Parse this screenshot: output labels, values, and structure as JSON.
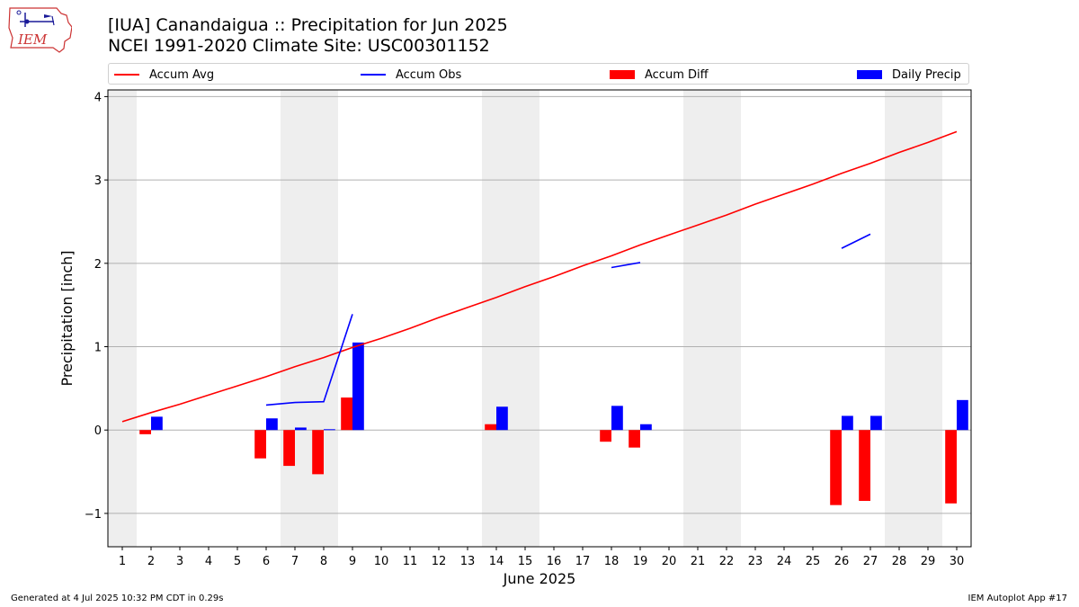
{
  "header": {
    "title_line1": "[IUA] Canandaigua :: Precipitation for Jun 2025",
    "title_line2": "NCEI 1991-2020 Climate Site: USC00301152"
  },
  "logo": {
    "text": "IEM",
    "icon": "iem-iowa-logo-icon"
  },
  "colors": {
    "avg": "#ff0000",
    "obs": "#0000ff",
    "diff": "#ff0000",
    "daily": "#0000ff",
    "weekend_band": "#eeeeee",
    "grid": "#b0b0b0"
  },
  "chart_data": {
    "type": "bar",
    "xlabel": "June 2025",
    "ylabel": "Precipitation [inch]",
    "ylim": [
      -1.4,
      4.08
    ],
    "yticks": [
      -1,
      0,
      1,
      2,
      3,
      4
    ],
    "ytick_labels": [
      "−1",
      "0",
      "1",
      "2",
      "3",
      "4"
    ],
    "x": [
      1,
      2,
      3,
      4,
      5,
      6,
      7,
      8,
      9,
      10,
      11,
      12,
      13,
      14,
      15,
      16,
      17,
      18,
      19,
      20,
      21,
      22,
      23,
      24,
      25,
      26,
      27,
      28,
      29,
      30
    ],
    "xtick_labels": [
      "1",
      "2",
      "3",
      "4",
      "5",
      "6",
      "7",
      "8",
      "9",
      "10",
      "11",
      "12",
      "13",
      "14",
      "15",
      "16",
      "17",
      "18",
      "19",
      "20",
      "21",
      "22",
      "23",
      "24",
      "25",
      "26",
      "27",
      "28",
      "29",
      "30"
    ],
    "weekend_days": [
      1,
      7,
      8,
      14,
      15,
      21,
      22,
      28,
      29
    ],
    "grid": true,
    "legend_position": "top",
    "series": [
      {
        "name": "Accum Avg",
        "kind": "line",
        "values": [
          0.1,
          0.21,
          0.31,
          0.42,
          0.53,
          0.64,
          0.76,
          0.87,
          0.99,
          1.1,
          1.22,
          1.35,
          1.47,
          1.59,
          1.72,
          1.84,
          1.97,
          2.09,
          2.22,
          2.34,
          2.46,
          2.58,
          2.71,
          2.83,
          2.95,
          3.08,
          3.2,
          3.33,
          3.45,
          3.58
        ]
      },
      {
        "name": "Accum Obs",
        "kind": "line",
        "values": [
          null,
          null,
          null,
          null,
          null,
          0.3,
          0.33,
          0.34,
          1.39,
          null,
          null,
          null,
          null,
          null,
          null,
          null,
          null,
          1.95,
          2.01,
          null,
          null,
          null,
          null,
          null,
          null,
          2.18,
          2.35,
          null,
          null,
          null
        ]
      },
      {
        "name": "Accum Diff",
        "kind": "bar",
        "values": [
          null,
          -0.05,
          null,
          null,
          null,
          -0.34,
          -0.43,
          -0.53,
          0.39,
          null,
          null,
          null,
          null,
          0.07,
          null,
          null,
          null,
          -0.14,
          -0.21,
          null,
          null,
          null,
          null,
          null,
          null,
          -0.9,
          -0.85,
          null,
          null,
          -0.88
        ]
      },
      {
        "name": "Daily Precip",
        "kind": "bar",
        "values": [
          null,
          0.16,
          null,
          null,
          null,
          0.14,
          0.03,
          0.01,
          1.05,
          null,
          null,
          null,
          null,
          0.28,
          null,
          null,
          null,
          0.29,
          0.07,
          null,
          null,
          null,
          null,
          null,
          null,
          0.17,
          0.17,
          null,
          null,
          0.36
        ]
      }
    ]
  },
  "footer": {
    "left": "Generated at 4 Jul 2025 10:32 PM CDT in 0.29s",
    "right": "IEM Autoplot App #17"
  }
}
